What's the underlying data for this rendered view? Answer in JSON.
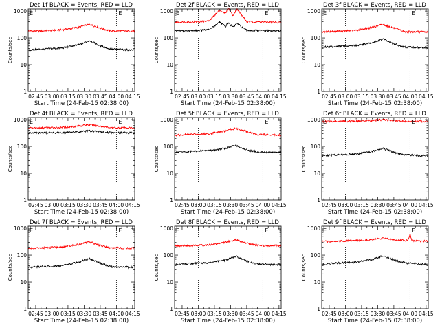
{
  "chart_data": [
    {
      "type": "line",
      "title": "Det 1f BLACK = Events, RED = LLD",
      "xlabel": "Start Time (24-Feb-15 02:38:00)",
      "ylabel": "Counts/sec",
      "y_scale": "log",
      "ylim": [
        1,
        1200
      ],
      "xlim": [
        "02:38",
        "04:17"
      ],
      "grid": false,
      "x_ticks": [
        "02:45",
        "03:00",
        "03:15",
        "03:30",
        "03:45",
        "04:00",
        "04:15"
      ],
      "y_ticks": [
        "1",
        "10",
        "100",
        "1000"
      ],
      "vlines": [
        "03:00",
        "04:00"
      ],
      "marker_label": "E",
      "series": [
        {
          "name": "RED",
          "color": "#ff0000",
          "x": [
            "02:38",
            "02:50",
            "03:10",
            "03:25",
            "03:35",
            "03:45",
            "03:55",
            "04:17"
          ],
          "values": [
            180,
            180,
            200,
            250,
            320,
            230,
            180,
            180
          ]
        },
        {
          "name": "BLACK",
          "color": "#000000",
          "x": [
            "02:38",
            "02:50",
            "03:10",
            "03:25",
            "03:35",
            "03:45",
            "03:55",
            "04:17"
          ],
          "values": [
            35,
            38,
            42,
            55,
            80,
            50,
            38,
            35
          ]
        }
      ]
    },
    {
      "type": "line",
      "title": "Det 2f BLACK = Events, RED = LLD",
      "xlabel": "Start Time (24-Feb-15 02:38:00)",
      "ylabel": "Counts/sec",
      "y_scale": "log",
      "ylim": [
        1,
        1200
      ],
      "xlim": [
        "02:38",
        "04:17"
      ],
      "grid": false,
      "x_ticks": [
        "02:45",
        "03:00",
        "03:15",
        "03:30",
        "03:45",
        "04:00",
        "04:15"
      ],
      "y_ticks": [
        "1",
        "10",
        "100",
        "1000"
      ],
      "vlines": [
        "03:00",
        "04:00"
      ],
      "marker_label": "E",
      "series": [
        {
          "name": "RED",
          "color": "#ff0000",
          "x": [
            "02:38",
            "03:00",
            "03:10",
            "03:15",
            "03:20",
            "03:25",
            "03:28",
            "03:32",
            "03:36",
            "03:40",
            "03:45",
            "04:17"
          ],
          "values": [
            380,
            400,
            420,
            700,
            1100,
            800,
            1300,
            700,
            1200,
            750,
            400,
            380
          ]
        },
        {
          "name": "BLACK",
          "color": "#000000",
          "x": [
            "02:38",
            "03:00",
            "03:10",
            "03:15",
            "03:20",
            "03:25",
            "03:28",
            "03:32",
            "03:36",
            "03:40",
            "03:45",
            "04:17"
          ],
          "values": [
            180,
            190,
            200,
            280,
            400,
            260,
            380,
            250,
            350,
            260,
            190,
            180
          ]
        }
      ]
    },
    {
      "type": "line",
      "title": "Det 3f BLACK = Events, RED = LLD",
      "xlabel": "Start Time (24-Feb-15 02:38:00)",
      "ylabel": "Counts/sec",
      "y_scale": "log",
      "ylim": [
        1,
        1200
      ],
      "xlim": [
        "02:38",
        "04:17"
      ],
      "grid": false,
      "x_ticks": [
        "02:45",
        "03:00",
        "03:15",
        "03:30",
        "03:45",
        "04:00",
        "04:15"
      ],
      "y_ticks": [
        "1",
        "10",
        "100",
        "1000"
      ],
      "vlines": [
        "03:00",
        "04:00"
      ],
      "marker_label": "E",
      "series": [
        {
          "name": "RED",
          "color": "#ff0000",
          "x": [
            "02:38",
            "02:50",
            "03:10",
            "03:25",
            "03:35",
            "03:45",
            "03:55",
            "04:17"
          ],
          "values": [
            170,
            175,
            190,
            250,
            320,
            230,
            170,
            170
          ]
        },
        {
          "name": "BLACK",
          "color": "#000000",
          "x": [
            "02:38",
            "02:50",
            "03:10",
            "03:25",
            "03:35",
            "03:45",
            "03:55",
            "04:17"
          ],
          "values": [
            45,
            48,
            52,
            65,
            90,
            60,
            45,
            43
          ]
        }
      ]
    },
    {
      "type": "line",
      "title": "Det 4f BLACK = Events, RED = LLD",
      "xlabel": "Start Time (24-Feb-15 02:38:00)",
      "ylabel": "Counts/sec",
      "y_scale": "log",
      "ylim": [
        1,
        1200
      ],
      "xlim": [
        "02:38",
        "04:17"
      ],
      "grid": false,
      "x_ticks": [
        "02:45",
        "03:00",
        "03:15",
        "03:30",
        "03:45",
        "04:00",
        "04:15"
      ],
      "y_ticks": [
        "1",
        "10",
        "100",
        "1000"
      ],
      "vlines": [
        "03:00",
        "04:00"
      ],
      "marker_label": "E",
      "series": [
        {
          "name": "RED",
          "color": "#ff0000",
          "x": [
            "02:38",
            "02:50",
            "03:10",
            "03:25",
            "03:35",
            "03:45",
            "03:55",
            "04:17"
          ],
          "values": [
            480,
            490,
            510,
            580,
            650,
            570,
            500,
            490
          ]
        },
        {
          "name": "BLACK",
          "color": "#000000",
          "x": [
            "02:38",
            "02:50",
            "03:10",
            "03:25",
            "03:35",
            "03:45",
            "03:55",
            "04:17"
          ],
          "values": [
            320,
            320,
            330,
            350,
            380,
            350,
            330,
            320
          ]
        }
      ]
    },
    {
      "type": "line",
      "title": "Det 5f BLACK = Events, RED = LLD",
      "xlabel": "Start Time (24-Feb-15 02:38:00)",
      "ylabel": "Counts/sec",
      "y_scale": "log",
      "ylim": [
        1,
        1200
      ],
      "xlim": [
        "02:38",
        "04:17"
      ],
      "grid": false,
      "x_ticks": [
        "02:45",
        "03:00",
        "03:15",
        "03:30",
        "03:45",
        "04:00",
        "04:15"
      ],
      "y_ticks": [
        "1",
        "10",
        "100",
        "1000"
      ],
      "vlines": [
        "03:00",
        "04:00"
      ],
      "marker_label": "E",
      "series": [
        {
          "name": "RED",
          "color": "#ff0000",
          "x": [
            "02:38",
            "02:50",
            "03:10",
            "03:25",
            "03:35",
            "03:45",
            "03:55",
            "04:17"
          ],
          "values": [
            260,
            280,
            300,
            380,
            480,
            360,
            280,
            270
          ]
        },
        {
          "name": "BLACK",
          "color": "#000000",
          "x": [
            "02:38",
            "02:50",
            "03:10",
            "03:25",
            "03:35",
            "03:45",
            "03:55",
            "04:17"
          ],
          "values": [
            60,
            65,
            70,
            85,
            110,
            75,
            62,
            60
          ]
        }
      ]
    },
    {
      "type": "line",
      "title": "Det 6f BLACK = Events, RED = LLD",
      "xlabel": "Start Time (24-Feb-15 02:38:00)",
      "ylabel": "Counts/sec",
      "y_scale": "log",
      "ylim": [
        1,
        1200
      ],
      "xlim": [
        "02:38",
        "04:17"
      ],
      "grid": false,
      "x_ticks": [
        "02:45",
        "03:00",
        "03:15",
        "03:30",
        "03:45",
        "04:00",
        "04:15"
      ],
      "y_ticks": [
        "1",
        "10",
        "100",
        "1000"
      ],
      "vlines": [
        "03:00",
        "04:00"
      ],
      "marker_label": "E",
      "series": [
        {
          "name": "RED",
          "color": "#ff0000",
          "x": [
            "02:38",
            "02:50",
            "03:10",
            "03:25",
            "03:35",
            "03:45",
            "03:55",
            "04:17"
          ],
          "values": [
            850,
            860,
            880,
            920,
            1000,
            920,
            870,
            860
          ]
        },
        {
          "name": "BLACK",
          "color": "#000000",
          "x": [
            "02:38",
            "02:50",
            "03:10",
            "03:25",
            "03:35",
            "03:45",
            "03:55",
            "04:17"
          ],
          "values": [
            45,
            48,
            52,
            65,
            85,
            60,
            48,
            45
          ]
        }
      ]
    },
    {
      "type": "line",
      "title": "Det 7f BLACK = Events, RED = LLD",
      "xlabel": "Start Time (24-Feb-15 02:38:00)",
      "ylabel": "Counts/sec",
      "y_scale": "log",
      "ylim": [
        1,
        1200
      ],
      "xlim": [
        "02:38",
        "04:17"
      ],
      "grid": false,
      "x_ticks": [
        "02:45",
        "03:00",
        "03:15",
        "03:30",
        "03:45",
        "04:00",
        "04:15"
      ],
      "y_ticks": [
        "1",
        "10",
        "100",
        "1000"
      ],
      "vlines": [
        "03:00",
        "04:00"
      ],
      "marker_label": "E",
      "series": [
        {
          "name": "RED",
          "color": "#ff0000",
          "x": [
            "02:38",
            "02:50",
            "03:10",
            "03:25",
            "03:35",
            "03:45",
            "03:55",
            "04:17"
          ],
          "values": [
            180,
            185,
            200,
            250,
            310,
            230,
            185,
            180
          ]
        },
        {
          "name": "BLACK",
          "color": "#000000",
          "x": [
            "02:38",
            "02:50",
            "03:10",
            "03:25",
            "03:35",
            "03:45",
            "03:55",
            "04:17"
          ],
          "values": [
            35,
            37,
            40,
            55,
            75,
            50,
            37,
            35
          ]
        }
      ]
    },
    {
      "type": "line",
      "title": "Det 8f BLACK = Events, RED = LLD",
      "xlabel": "Start Time (24-Feb-15 02:38:00)",
      "ylabel": "Counts/sec",
      "y_scale": "log",
      "ylim": [
        1,
        1200
      ],
      "xlim": [
        "02:38",
        "04:17"
      ],
      "grid": false,
      "x_ticks": [
        "02:45",
        "03:00",
        "03:15",
        "03:30",
        "03:45",
        "04:00",
        "04:15"
      ],
      "y_ticks": [
        "1",
        "10",
        "100",
        "1000"
      ],
      "vlines": [
        "03:00",
        "04:00"
      ],
      "marker_label": "E",
      "series": [
        {
          "name": "RED",
          "color": "#ff0000",
          "x": [
            "02:38",
            "02:50",
            "03:10",
            "03:25",
            "03:35",
            "03:45",
            "03:55",
            "04:17"
          ],
          "values": [
            220,
            225,
            240,
            300,
            380,
            280,
            230,
            225
          ]
        },
        {
          "name": "BLACK",
          "color": "#000000",
          "x": [
            "02:38",
            "02:50",
            "03:10",
            "03:25",
            "03:35",
            "03:45",
            "03:55",
            "04:17"
          ],
          "values": [
            45,
            47,
            52,
            65,
            90,
            60,
            46,
            44
          ]
        }
      ]
    },
    {
      "type": "line",
      "title": "Det 9f BLACK = Events, RED = LLD",
      "xlabel": "Start Time (24-Feb-15 02:38:00)",
      "ylabel": "Counts/sec",
      "y_scale": "log",
      "ylim": [
        1,
        1200
      ],
      "xlim": [
        "02:38",
        "04:17"
      ],
      "grid": false,
      "x_ticks": [
        "02:45",
        "03:00",
        "03:15",
        "03:30",
        "03:45",
        "04:00",
        "04:15"
      ],
      "y_ticks": [
        "1",
        "10",
        "100",
        "1000"
      ],
      "vlines": [
        "03:00",
        "04:00"
      ],
      "marker_label": "E",
      "series": [
        {
          "name": "RED",
          "color": "#ff0000",
          "x": [
            "02:38",
            "02:50",
            "03:10",
            "03:25",
            "03:35",
            "03:45",
            "03:58",
            "04:00",
            "04:02",
            "04:05",
            "04:17"
          ],
          "values": [
            320,
            330,
            350,
            380,
            420,
            380,
            350,
            600,
            350,
            340,
            330
          ]
        },
        {
          "name": "BLACK",
          "color": "#000000",
          "x": [
            "02:38",
            "02:50",
            "03:10",
            "03:25",
            "03:35",
            "03:45",
            "03:58",
            "04:00",
            "04:02",
            "04:05",
            "04:17"
          ],
          "values": [
            45,
            50,
            55,
            70,
            95,
            65,
            50,
            52,
            50,
            48,
            45
          ]
        }
      ]
    }
  ]
}
